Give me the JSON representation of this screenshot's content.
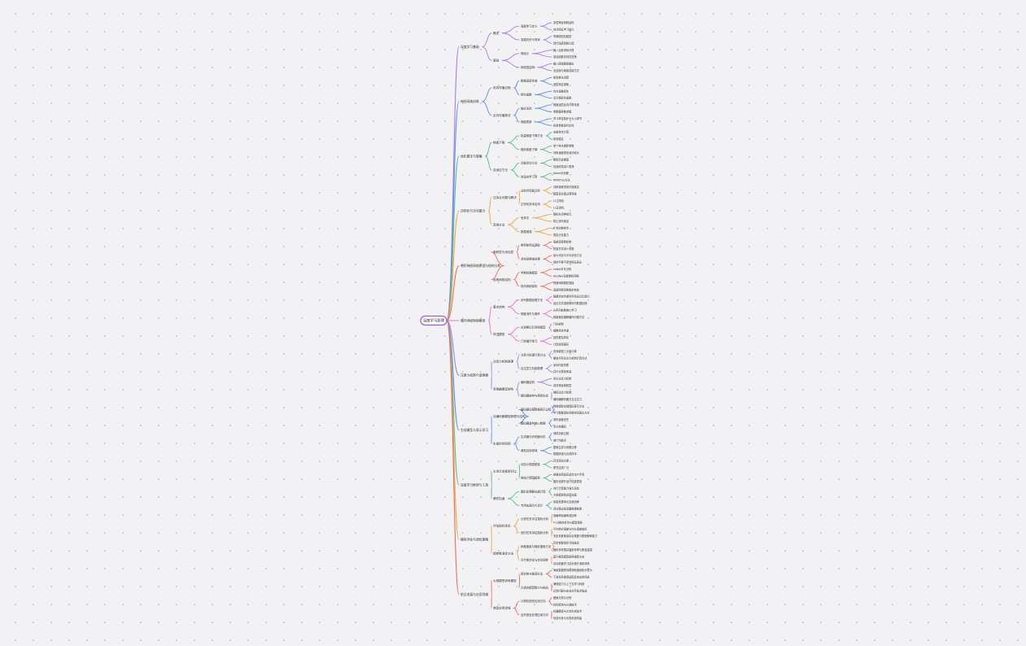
{
  "canvas": {
    "background": "#f2f2f4",
    "dot_color": "#c9c9cf"
  },
  "root": {
    "label": "深度学习原理",
    "color": "#9b59d6"
  },
  "branches": [
    {
      "label": "深度学习基础",
      "color": "#a97ce6",
      "children": [
        {
          "label": "概述",
          "children": [
            {
              "label": "深度学习定义",
              "children": [
                {
                  "label": "多层神经网络结构"
                },
                {
                  "label": "自动特征学习能力"
                }
              ]
            },
            {
              "label": "发展历史与现状",
              "children": [
                {
                  "label": "早期感知机模型"
                },
                {
                  "label": "现代深度网络兴起"
                }
              ]
            }
          ]
        },
        {
          "label": "基础",
          "children": [
            {
              "label": "神经元",
              "children": [
                {
                  "label": "输入加权求和计算"
                },
                {
                  "label": "激活函数非线性变换"
                }
              ]
            },
            {
              "label": "网络层结构",
              "children": [
                {
                  "label": "输入层隐藏层输出"
                },
                {
                  "label": "全连接与局部连接方式"
                }
              ]
            }
          ]
        }
      ]
    },
    {
      "label": "神经网络训练",
      "color": "#5b8def",
      "children": [
        {
          "label": "前向传播过程",
          "children": [
            {
              "label": "数据逐层传递",
              "children": [
                {
                  "label": "矩阵乘法运算"
                },
                {
                  "label": "逐层特征提取"
                }
              ]
            },
            {
              "label": "损失函数",
              "children": [
                {
                  "label": "均方误差损失"
                },
                {
                  "label": "交叉熵损失函数"
                }
              ]
            }
          ]
        },
        {
          "label": "反向传播算法",
          "children": [
            {
              "label": "链式法则",
              "children": [
                {
                  "label": "梯度逐层反向计算传递"
                },
                {
                  "label": "参数偏导数求解"
                }
              ]
            },
            {
              "label": "梯度更新",
              "children": [
                {
                  "label": "学习率控制步长大小调节"
                },
                {
                  "label": "权重参数迭代优化"
                }
              ]
            }
          ]
        }
      ]
    },
    {
      "label": "优化算法与策略",
      "color": "#4cbf8a",
      "children": [
        {
          "label": "梯度下降",
          "children": [
            {
              "label": "批量梯度下降方法",
              "children": [
                {
                  "label": "全部样本计算"
                },
                {
                  "label": "收敛稳定"
                }
              ]
            },
            {
              "label": "随机梯度下降",
              "children": [
                {
                  "label": "单个样本更新参数"
                },
                {
                  "label": "训练速度快但波动较大"
                }
              ]
            }
          ]
        },
        {
          "label": "自适应方法",
          "children": [
            {
              "label": "动量优化方法",
              "children": [
                {
                  "label": "累积历史梯度"
                },
                {
                  "label": "加速收敛减少震荡"
                }
              ]
            },
            {
              "label": "自适应学习率",
              "children": [
                {
                  "label": "Adam优化器"
                },
                {
                  "label": "RMSProp方法"
                }
              ]
            }
          ]
        }
      ]
    },
    {
      "label": "正则化与泛化能力",
      "color": "#f2a33a",
      "children": [
        {
          "label": "过拟合问题与解决",
          "children": [
            {
              "label": "过拟合现象识别",
              "children": [
                {
                  "label": "训练误差低测试误差高"
                },
                {
                  "label": "模型复杂度过高导致"
                }
              ]
            },
            {
              "label": "正则化技术应用",
              "children": [
                {
                  "label": "L1正则化"
                },
                {
                  "label": "L2正则化"
                }
              ]
            }
          ]
        },
        {
          "label": "其他方法",
          "children": [
            {
              "label": "丢弃法",
              "children": [
                {
                  "label": "随机失活神经元"
                },
                {
                  "label": "防止协同适应"
                }
              ]
            },
            {
              "label": "数据增强",
              "children": [
                {
                  "label": "扩充训练样本"
                },
                {
                  "label": "提高泛化能力"
                }
              ]
            }
          ]
        }
      ]
    },
    {
      "label": "卷积神经网络原理与结构分析",
      "color": "#ef6b5a",
      "children": [
        {
          "label": "卷积层与池化层",
          "children": [
            {
              "label": "卷积核特征提取",
              "children": [
                {
                  "label": "局部感受野机制"
                },
                {
                  "label": "权值共享减少参数"
                }
              ]
            },
            {
              "label": "池化层降维处理",
              "children": [
                {
                  "label": "最大池化与平均池化方法"
                },
                {
                  "label": "保持平移不变性特征表达"
                }
              ]
            }
          ]
        },
        {
          "label": "经典网络结构",
          "children": [
            {
              "label": "早期经典模型",
              "children": [
                {
                  "label": "LeNet手写识别"
                },
                {
                  "label": "AlexNet深度卷积网络"
                }
              ]
            },
            {
              "label": "现代网络架构",
              "children": [
                {
                  "label": "残差网络跳跃连接"
                },
                {
                  "label": "深层网络训练稳定有效"
                }
              ]
            }
          ]
        }
      ]
    },
    {
      "label": "循环神经网络模型",
      "color": "#e86fcf",
      "children": [
        {
          "label": "基本结构",
          "children": [
            {
              "label": "序列数据处理方法",
              "children": [
                {
                  "label": "隐藏状态传递时序信息记忆能力"
                },
                {
                  "label": "适合文本语音等序列数据处理"
                }
              ]
            },
            {
              "label": "梯度消失与爆炸",
              "children": [
                {
                  "label": "长序列依赖难以学习"
                },
                {
                  "label": "梯度裁剪缓解爆炸问题方法"
                }
              ]
            }
          ]
        },
        {
          "label": "改进模型",
          "children": [
            {
              "label": "长短期记忆网络模型",
              "children": [
                {
                  "label": "门控机制"
                },
                {
                  "label": "细胞状态传递"
                }
              ]
            },
            {
              "label": "门控循环单元",
              "children": [
                {
                  "label": "结构更加简化"
                },
                {
                  "label": "计算效率更高"
                }
              ]
            }
          ]
        }
      ]
    },
    {
      "label": "注意力机制与变换器",
      "color": "#a97ce6",
      "children": [
        {
          "label": "注意力机制原理",
          "children": [
            {
              "label": "注意力权重计算方法",
              "children": [
                {
                  "label": "查询键值三元组计算"
                },
                {
                  "label": "缩放点积注意力机制计算方式"
                }
              ]
            },
            {
              "label": "自注意力机制原理",
              "children": [
                {
                  "label": "序列内部关联"
                },
                {
                  "label": "并行计算效率高"
                }
              ]
            }
          ]
        },
        {
          "label": "变换器模型架构",
          "children": [
            {
              "label": "编码器结构",
              "children": [
                {
                  "label": "多头注意力机制"
                },
                {
                  "label": "前馈神经网络层"
                }
              ]
            },
            {
              "label": "解码器结构与预测生成",
              "children": [
                {
                  "label": "掩码注意力机制"
                },
                {
                  "label": "编码器解码器交互注意力"
                }
              ]
            }
          ]
        }
      ]
    },
    {
      "label": "生成模型与表示学习",
      "color": "#5b8def",
      "children": [
        {
          "label": "自编码器模型原理与结构",
          "children": [
            {
              "label": "编码器压缩数据表示过程",
              "children": [
                {
                  "label": "降维提取关键特征表示方法"
                },
                {
                  "label": "学习数据潜在低维空间表达方式"
                }
              ]
            },
            {
              "label": "解码器重构输入数据",
              "children": [
                {
                  "label": "重构误差损失"
                },
                {
                  "label": "变分自编码"
                }
              ]
            }
          ]
        },
        {
          "label": "生成对抗网络",
          "children": [
            {
              "label": "生成器与判别器对抗",
              "children": [
                {
                  "label": "博弈训练过程"
                },
                {
                  "label": "纳什均衡点"
                }
              ]
            },
            {
              "label": "典型应用领域",
              "children": [
                {
                  "label": "图像生成与风格迁移"
                },
                {
                  "label": "数据增强与合成样本"
                }
              ]
            }
          ]
        }
      ]
    },
    {
      "label": "深度学习框架与工具",
      "color": "#4cbf8a",
      "children": [
        {
          "label": "主流开发框架对比",
          "children": [
            {
              "label": "动态计算图框架",
              "children": [
                {
                  "label": "灵活调试方便"
                },
                {
                  "label": "研究应用广泛"
                }
              ]
            },
            {
              "label": "静态计算图框架",
              "children": [
                {
                  "label": "部署效率较高适合生产环境"
                },
                {
                  "label": "图优化提升运行性能表现"
                }
              ]
            }
          ]
        },
        {
          "label": "硬件加速",
          "children": [
            {
              "label": "图形处理器加速计算",
              "children": [
                {
                  "label": "并行计算能力强大高效"
                },
                {
                  "label": "大规模矩阵运算加速"
                }
              ]
            },
            {
              "label": "专用加速芯片设计",
              "children": [
                {
                  "label": "张量处理单元加速训练"
                },
                {
                  "label": "低功耗边缘设备推理部署"
                }
              ]
            }
          ]
        }
      ]
    },
    {
      "label": "模型评估与调优策略",
      "color": "#f2a33a",
      "children": [
        {
          "label": "评估指标体系",
          "children": [
            {
              "label": "分类任务评估指标分析",
              "children": [
                {
                  "label": "准确率精确率召回率"
                },
                {
                  "label": "F1分数综合评价模型性能"
                }
              ]
            },
            {
              "label": "回归任务评估指标分析",
              "children": [
                {
                  "label": "平均绝对误差与均方误差指标"
                },
                {
                  "label": "决定系数衡量拟合程度与模型解释能力"
                }
              ]
            }
          ]
        },
        {
          "label": "超参数调优方法",
          "children": [
            {
              "label": "网格搜索与随机搜索方法",
              "children": [
                {
                  "label": "穷举参数组合寻找最优"
                },
                {
                  "label": "随机采样提高搜索效率与覆盖范围"
                }
              ]
            },
            {
              "label": "贝叶斯优化与自动调参",
              "children": [
                {
                  "label": "基于概率模型指导搜索方向"
                },
                {
                  "label": "自动机器学习技术提升调参效率"
                }
              ]
            }
          ]
        }
      ]
    },
    {
      "label": "前沿发展与应用领域",
      "color": "#ef6b5a",
      "children": [
        {
          "label": "大规模预训练模型",
          "children": [
            {
              "label": "预训练与微调方法",
              "children": [
                {
                  "label": "海量数据预训练获取通用知识表示"
                },
                {
                  "label": "下游任务微调适配具体应用场景"
                }
              ]
            },
            {
              "label": "大语言模型能力与挑战",
              "children": [
                {
                  "label": "涌现能力与上下文学习机制"
                },
                {
                  "label": "幻觉问题与安全对齐技术挑战"
                }
              ]
            }
          ]
        },
        {
          "label": "典型应用领域",
          "children": [
            {
              "label": "计算机视觉应用方向",
              "children": [
                {
                  "label": "图像分类与识别"
                },
                {
                  "label": "目标检测与分割技术"
                }
              ]
            },
            {
              "label": "自然语言处理应用方向",
              "children": [
                {
                  "label": "机器翻译与文本生成技术"
                },
                {
                  "label": "情感分析与问答系统构建"
                }
              ]
            }
          ]
        }
      ]
    }
  ]
}
